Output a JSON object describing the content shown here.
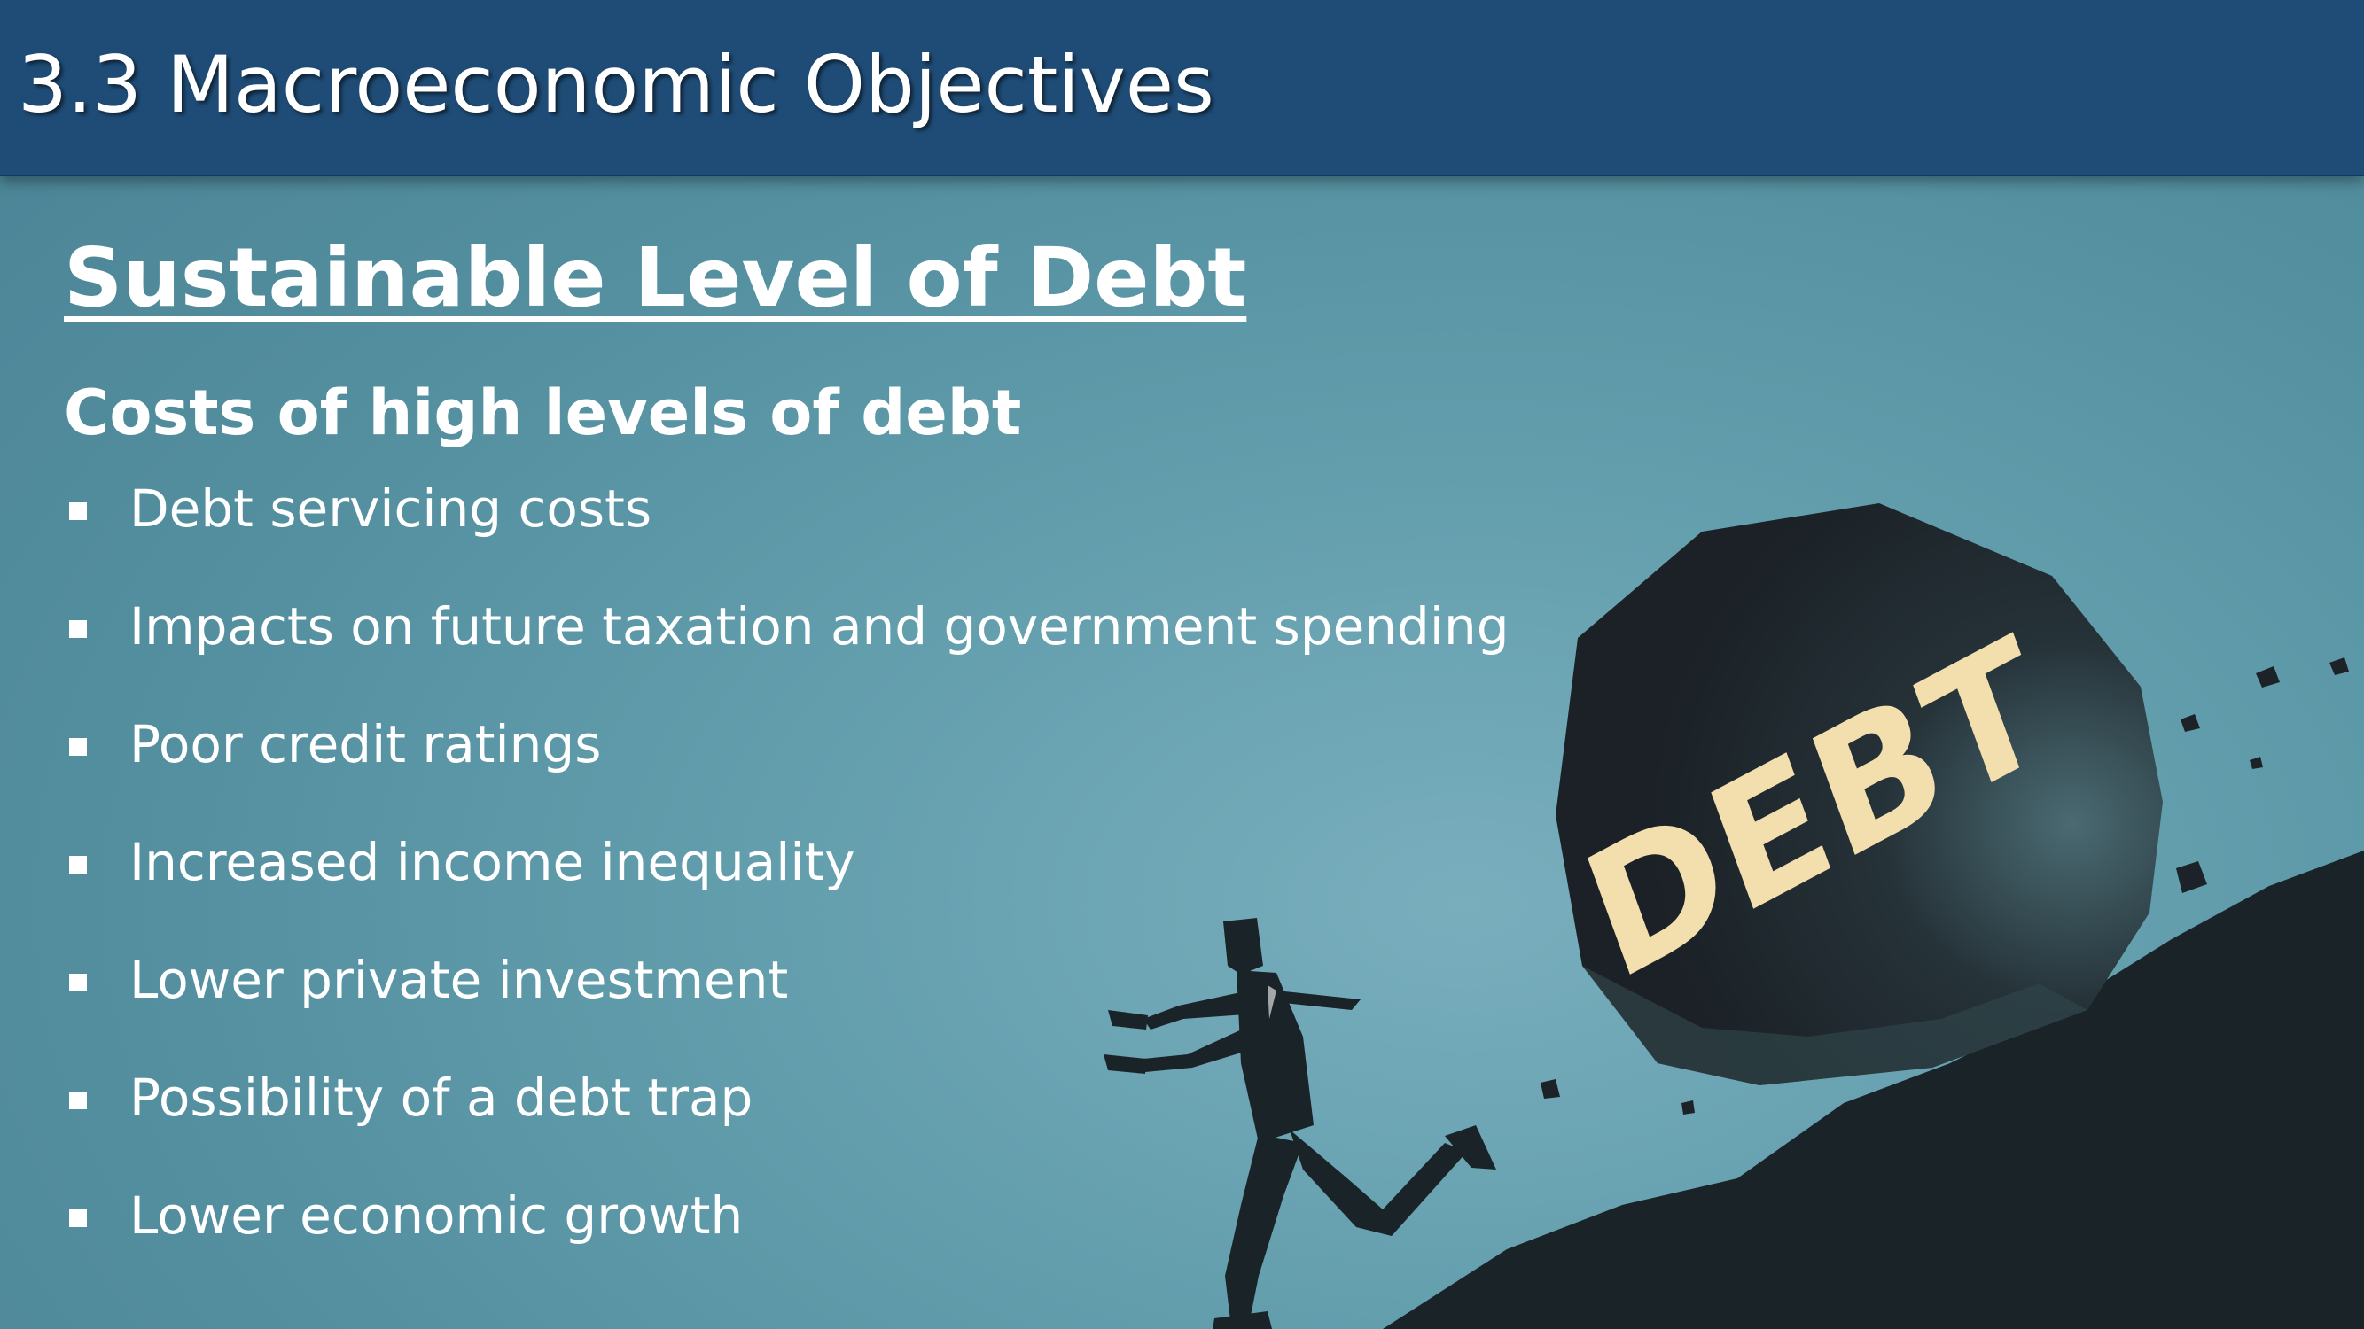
{
  "slide": {
    "title": "3.3 Macroeconomic Objectives",
    "heading": "Sustainable Level of Debt",
    "subheading": "Costs of high levels of debt",
    "bullets": [
      "Debt servicing costs",
      "Impacts on future taxation and government spending",
      "Poor credit ratings",
      "Increased income inequality",
      "Lower private investment",
      "Possibility of a debt trap",
      "Lower economic growth"
    ]
  },
  "illustration": {
    "boulder_text": "DEBT",
    "description_icon": "man-running-from-boulder",
    "colors": {
      "title_bar": "#1f4c76",
      "background": "#5e9aaa",
      "boulder": "#1c2227",
      "boulder_text": "#f3deae",
      "ground": "#1a2428",
      "slope_highlight": "#e8e0b4"
    }
  }
}
